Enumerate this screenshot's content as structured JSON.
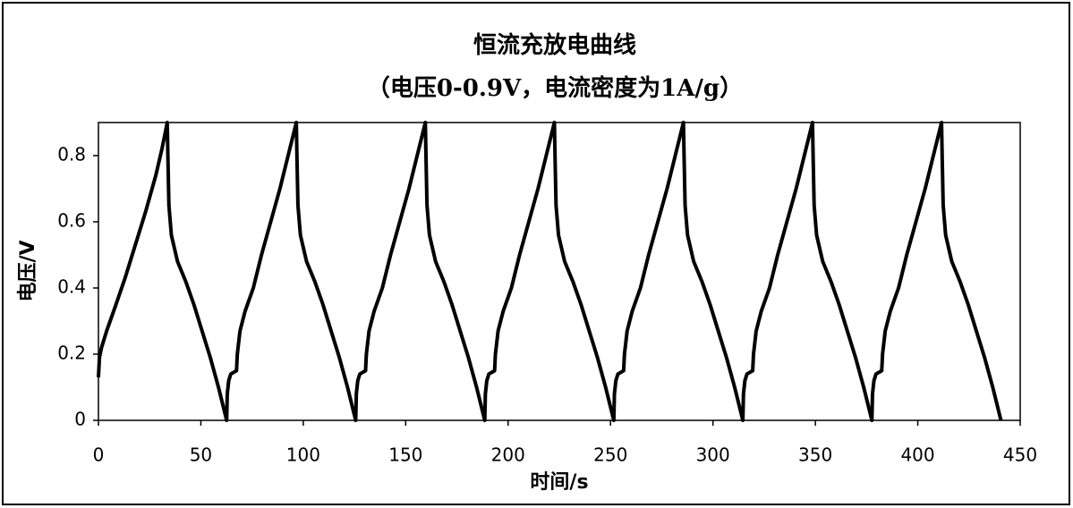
{
  "chart_data": {
    "type": "line",
    "title": "恒流充放电曲线",
    "subtitle": "（电压0-0.9V，电流密度为1A/g）",
    "x_label": "时间/s",
    "y_label": "电压/V",
    "xlim": [
      0,
      450
    ],
    "xticks": [
      0,
      50,
      100,
      150,
      200,
      250,
      300,
      350,
      400,
      450
    ],
    "ylim": [
      0,
      0.9
    ],
    "yticks": [
      0,
      0.2,
      0.4,
      0.6,
      0.8
    ],
    "grid": false,
    "x": [
      0,
      0.5,
      1.5,
      4,
      8,
      13,
      18,
      23,
      28,
      31,
      33.6,
      33.9,
      34.4,
      35.6,
      38.6,
      42.6,
      46.6,
      50.6,
      54.6,
      58.6,
      62.6,
      62.9,
      63.6,
      64.6,
      67.4,
      67.8,
      69.1,
      71.6,
      75.6,
      79.6,
      84.1,
      88.6,
      92.6,
      96.6,
      96.9,
      97.4,
      98.6,
      101.6,
      105.6,
      109.6,
      113.6,
      117.6,
      121.6,
      125.6,
      125.9,
      126.6,
      127.6,
      130.4,
      130.8,
      132.1,
      134.6,
      138.6,
      142.6,
      147.1,
      151.6,
      155.6,
      159.6,
      159.9,
      160.4,
      161.6,
      164.6,
      168.6,
      172.6,
      176.6,
      180.6,
      184.6,
      188.6,
      188.9,
      189.6,
      190.6,
      193.4,
      193.8,
      195.1,
      197.6,
      201.6,
      205.6,
      210.1,
      214.6,
      218.6,
      222.6,
      222.9,
      223.4,
      224.6,
      227.6,
      231.6,
      235.6,
      239.6,
      243.6,
      247.6,
      251.6,
      251.9,
      252.6,
      253.6,
      256.4,
      256.8,
      258.1,
      260.6,
      264.6,
      268.6,
      273.1,
      277.6,
      281.6,
      285.6,
      285.9,
      286.4,
      287.6,
      290.6,
      294.6,
      298.6,
      302.6,
      306.6,
      310.6,
      314.6,
      314.9,
      315.6,
      316.6,
      319.4,
      319.8,
      321.1,
      323.6,
      327.6,
      331.6,
      336.1,
      340.6,
      344.6,
      348.6,
      348.9,
      349.4,
      350.6,
      353.6,
      357.6,
      361.6,
      365.6,
      369.6,
      373.6,
      377.6,
      377.9,
      378.6,
      379.6,
      382.4,
      382.8,
      384.1,
      386.6,
      390.6,
      394.6,
      399.1,
      403.6,
      407.6,
      411.6,
      411.9,
      412.4,
      413.6,
      416.6,
      420.6,
      424.6,
      428.6,
      432.6,
      436.6,
      440.6
    ],
    "series": [
      {
        "color": "#000000",
        "values": [
          0.13,
          0.19,
          0.22,
          0.27,
          0.34,
          0.43,
          0.53,
          0.63,
          0.74,
          0.82,
          0.9,
          0.8,
          0.65,
          0.56,
          0.48,
          0.42,
          0.35,
          0.27,
          0.19,
          0.1,
          0,
          0.08,
          0.12,
          0.14,
          0.15,
          0.2,
          0.27,
          0.33,
          0.4,
          0.5,
          0.6,
          0.7,
          0.8,
          0.9,
          0.8,
          0.65,
          0.56,
          0.48,
          0.42,
          0.35,
          0.27,
          0.19,
          0.1,
          0,
          0.08,
          0.12,
          0.14,
          0.15,
          0.2,
          0.27,
          0.33,
          0.4,
          0.5,
          0.6,
          0.7,
          0.8,
          0.9,
          0.8,
          0.65,
          0.56,
          0.48,
          0.42,
          0.35,
          0.27,
          0.19,
          0.1,
          0,
          0.08,
          0.12,
          0.14,
          0.15,
          0.2,
          0.27,
          0.33,
          0.4,
          0.5,
          0.6,
          0.7,
          0.8,
          0.9,
          0.8,
          0.65,
          0.56,
          0.48,
          0.42,
          0.35,
          0.27,
          0.19,
          0.1,
          0,
          0.08,
          0.12,
          0.14,
          0.15,
          0.2,
          0.27,
          0.33,
          0.4,
          0.5,
          0.6,
          0.7,
          0.8,
          0.9,
          0.8,
          0.65,
          0.56,
          0.48,
          0.42,
          0.35,
          0.27,
          0.19,
          0.1,
          0,
          0.08,
          0.12,
          0.14,
          0.15,
          0.2,
          0.27,
          0.33,
          0.4,
          0.5,
          0.6,
          0.7,
          0.8,
          0.9,
          0.8,
          0.65,
          0.56,
          0.48,
          0.42,
          0.35,
          0.27,
          0.19,
          0.1,
          0,
          0.08,
          0.12,
          0.14,
          0.15,
          0.2,
          0.27,
          0.33,
          0.4,
          0.5,
          0.6,
          0.7,
          0.8,
          0.9,
          0.8,
          0.65,
          0.56,
          0.48,
          0.42,
          0.35,
          0.27,
          0.19,
          0.1,
          0
        ]
      }
    ]
  }
}
